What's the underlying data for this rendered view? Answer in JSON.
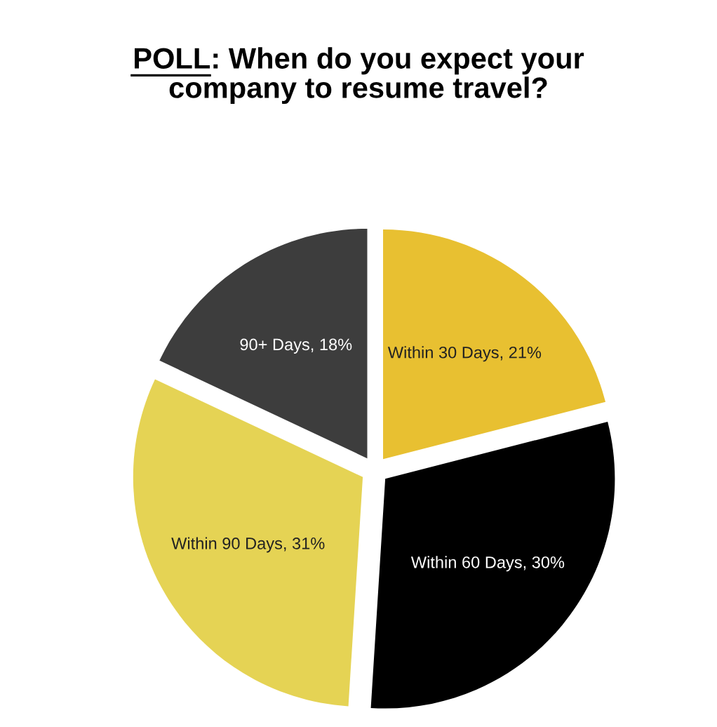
{
  "chart_data": {
    "type": "pie",
    "title": "POLL: When do you expect your\ncompany to resume travel?",
    "categories": [
      "Within 30 Days",
      "Within 60 Days",
      "Within 90 Days",
      "90+ Days"
    ],
    "values": [
      21,
      30,
      31,
      18
    ],
    "value_labels": [
      "21%",
      "30%",
      "31%",
      "18%"
    ],
    "colors": [
      "#e8c031",
      "#000000",
      "#e5d354",
      "#3d3d3d"
    ]
  }
}
